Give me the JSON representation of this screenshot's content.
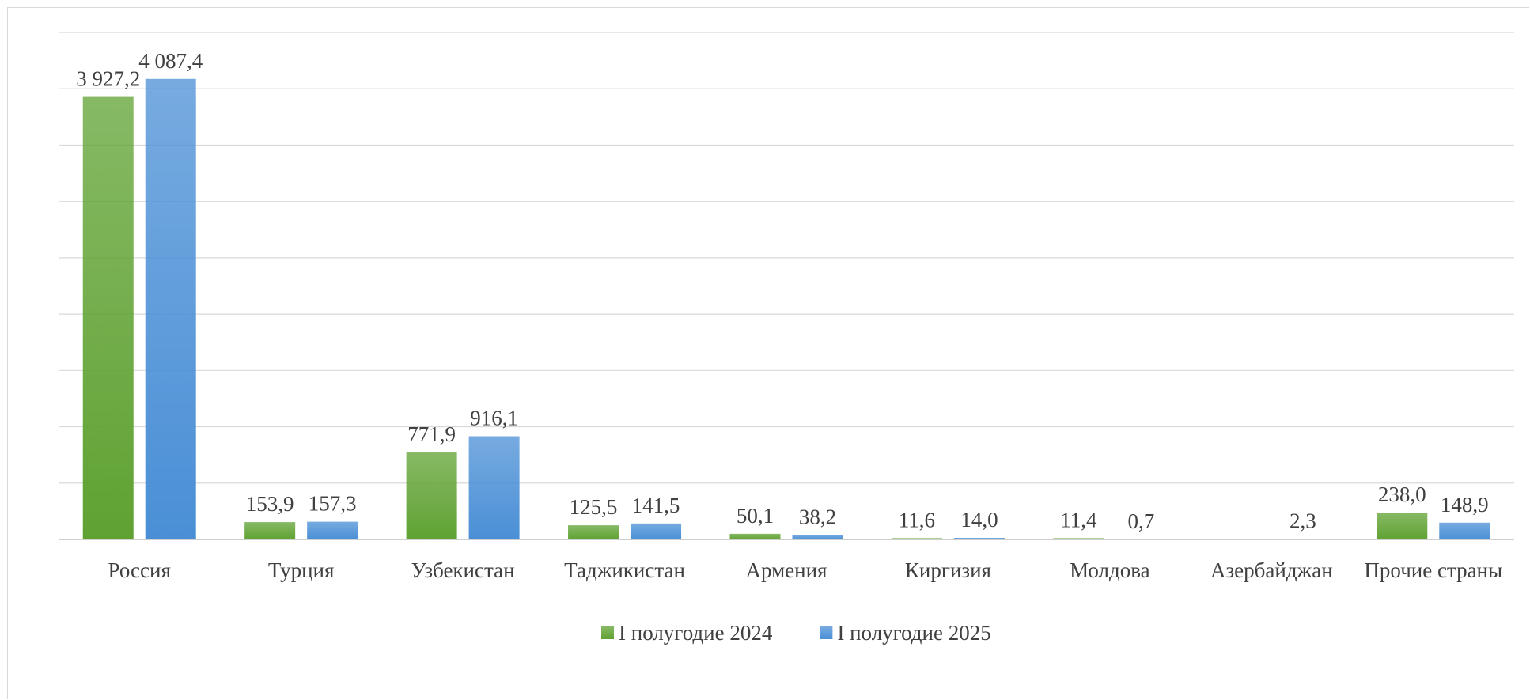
{
  "chart_data": {
    "type": "bar",
    "categories": [
      "Россия",
      "Турция",
      "Узбекистан",
      "Таджикистан",
      "Армения",
      "Киргизия",
      "Молдова",
      "Азербайджан",
      "Прочие страны"
    ],
    "series": [
      {
        "name": "I полугодие 2024",
        "color": "#5fa232",
        "values": [
          3927.2,
          153.9,
          771.9,
          125.5,
          50.1,
          11.6,
          11.4,
          null,
          238.0
        ],
        "value_labels": [
          "3 927,2",
          "153,9",
          "771,9",
          "125,5",
          "50,1",
          "11,6",
          "11,4",
          null,
          "238,0"
        ]
      },
      {
        "name": "I полугодие 2025",
        "color": "#4a8fd6",
        "values": [
          4087.4,
          157.3,
          916.1,
          141.5,
          38.2,
          14.0,
          0.7,
          2.3,
          148.9
        ],
        "value_labels": [
          "4 087,4",
          "157,3",
          "916,1",
          "141,5",
          "38,2",
          "14,0",
          "0,7",
          "2,3",
          "148,9"
        ]
      }
    ],
    "ylim": [
      0,
      4500
    ],
    "yticks": [
      0,
      500,
      1000,
      1500,
      2000,
      2500,
      3000,
      3500,
      4000,
      4500
    ],
    "grid": true,
    "legend": "bottom"
  }
}
